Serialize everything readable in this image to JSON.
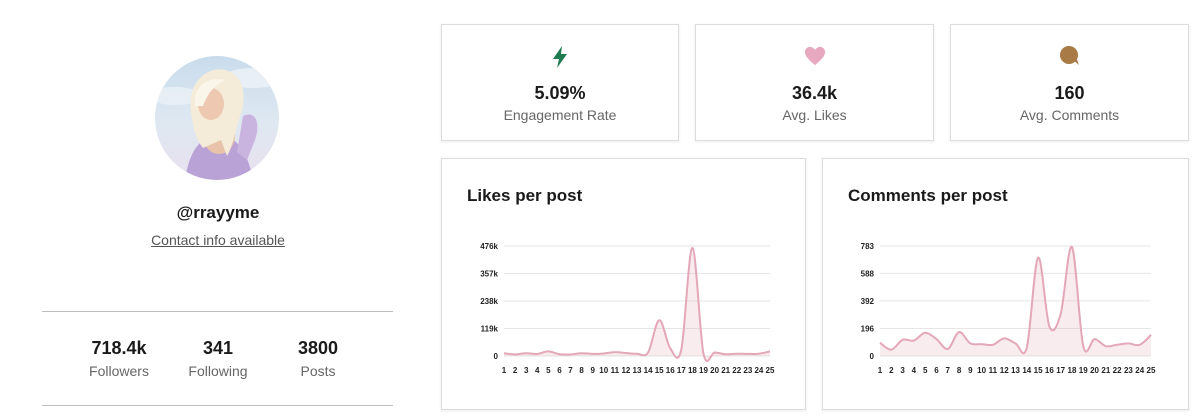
{
  "profile": {
    "handle": "@rrayyme",
    "contact_link": "Contact info available",
    "stats": [
      {
        "value": "718.4k",
        "label": "Followers"
      },
      {
        "value": "341",
        "label": "Following"
      },
      {
        "value": "3800",
        "label": "Posts"
      }
    ]
  },
  "metrics": [
    {
      "icon": "lightning-icon",
      "value": "5.09%",
      "label": "Engagement Rate",
      "color": "#1e7a4f"
    },
    {
      "icon": "heart-icon",
      "value": "36.4k",
      "label": "Avg. Likes",
      "color": "#e8a8c0"
    },
    {
      "icon": "comment-icon",
      "value": "160",
      "label": "Avg. Comments",
      "color": "#a87a45"
    }
  ],
  "chart_data": [
    {
      "type": "area",
      "title": "Likes per post",
      "x": [
        1,
        2,
        3,
        4,
        5,
        6,
        7,
        8,
        9,
        10,
        11,
        12,
        13,
        14,
        15,
        16,
        17,
        18,
        19,
        20,
        21,
        22,
        23,
        24,
        25
      ],
      "x_tick_labels": [
        "1",
        "2",
        "3",
        "4",
        "5",
        "6",
        "7",
        "8",
        "9",
        "10",
        "11",
        "12",
        "13",
        "14",
        "15",
        "16",
        "17",
        "18",
        "19",
        "20",
        "21",
        "22",
        "23",
        "24",
        "25"
      ],
      "y_ticks": [
        0,
        119000,
        238000,
        357000,
        476000
      ],
      "y_tick_labels": [
        "0",
        "119k",
        "238k",
        "357k",
        "476k"
      ],
      "ylim": [
        0,
        476000
      ],
      "series": [
        {
          "values": [
            12000,
            7000,
            12000,
            9000,
            20000,
            8000,
            7000,
            12000,
            9000,
            11000,
            17000,
            13000,
            10000,
            15000,
            155000,
            33000,
            28000,
            468000,
            10000,
            15000,
            8000,
            10000,
            9000,
            10000,
            20000
          ]
        }
      ],
      "color": "#e3a7b8",
      "grid": true
    },
    {
      "type": "area",
      "title": "Comments per post",
      "x": [
        1,
        2,
        3,
        4,
        5,
        6,
        7,
        8,
        9,
        10,
        11,
        12,
        13,
        14,
        15,
        16,
        17,
        18,
        19,
        20,
        21,
        22,
        23,
        24,
        25
      ],
      "x_tick_labels": [
        "1",
        "2",
        "3",
        "4",
        "5",
        "6",
        "7",
        "8",
        "9",
        "10",
        "11",
        "12",
        "13",
        "14",
        "15",
        "16",
        "17",
        "18",
        "19",
        "20",
        "21",
        "22",
        "23",
        "24",
        "25"
      ],
      "y_ticks": [
        0,
        196,
        392,
        588,
        783
      ],
      "y_tick_labels": [
        "0",
        "196",
        "392",
        "588",
        "783"
      ],
      "ylim": [
        0,
        783
      ],
      "series": [
        {
          "values": [
            95,
            45,
            115,
            110,
            165,
            120,
            50,
            170,
            90,
            85,
            80,
            125,
            90,
            60,
            700,
            210,
            300,
            775,
            70,
            120,
            70,
            80,
            90,
            80,
            150
          ]
        }
      ],
      "color": "#e3a7b8",
      "grid": true
    }
  ]
}
